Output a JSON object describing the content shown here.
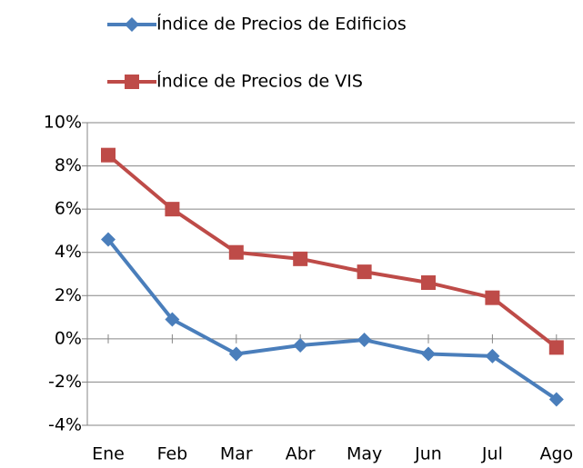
{
  "chart_data": {
    "type": "line",
    "categories": [
      "Ene",
      "Feb",
      "Mar",
      "Abr",
      "May",
      "Jun",
      "Jul",
      "Ago"
    ],
    "series": [
      {
        "name": "Índice de Precios de Edificios",
        "color": "#4a7ebb",
        "marker": "diamond",
        "values": [
          4.6,
          0.9,
          -0.7,
          -0.3,
          -0.05,
          -0.7,
          -0.8,
          -2.8
        ]
      },
      {
        "name": "Índice de Precios de VIS",
        "color": "#be4b48",
        "marker": "square",
        "values": [
          8.5,
          6.0,
          4.0,
          3.7,
          3.1,
          2.6,
          1.9,
          -0.4
        ]
      }
    ],
    "ylim": [
      -4,
      10
    ],
    "yticks": [
      {
        "value": -4,
        "label": "-4%"
      },
      {
        "value": -2,
        "label": "-2%"
      },
      {
        "value": 0,
        "label": "0%"
      },
      {
        "value": 2,
        "label": "2%"
      },
      {
        "value": 4,
        "label": "4%"
      },
      {
        "value": 6,
        "label": "6%"
      },
      {
        "value": 8,
        "label": "8%"
      },
      {
        "value": 10,
        "label": "10%"
      }
    ],
    "grid": true,
    "legend": "top"
  }
}
